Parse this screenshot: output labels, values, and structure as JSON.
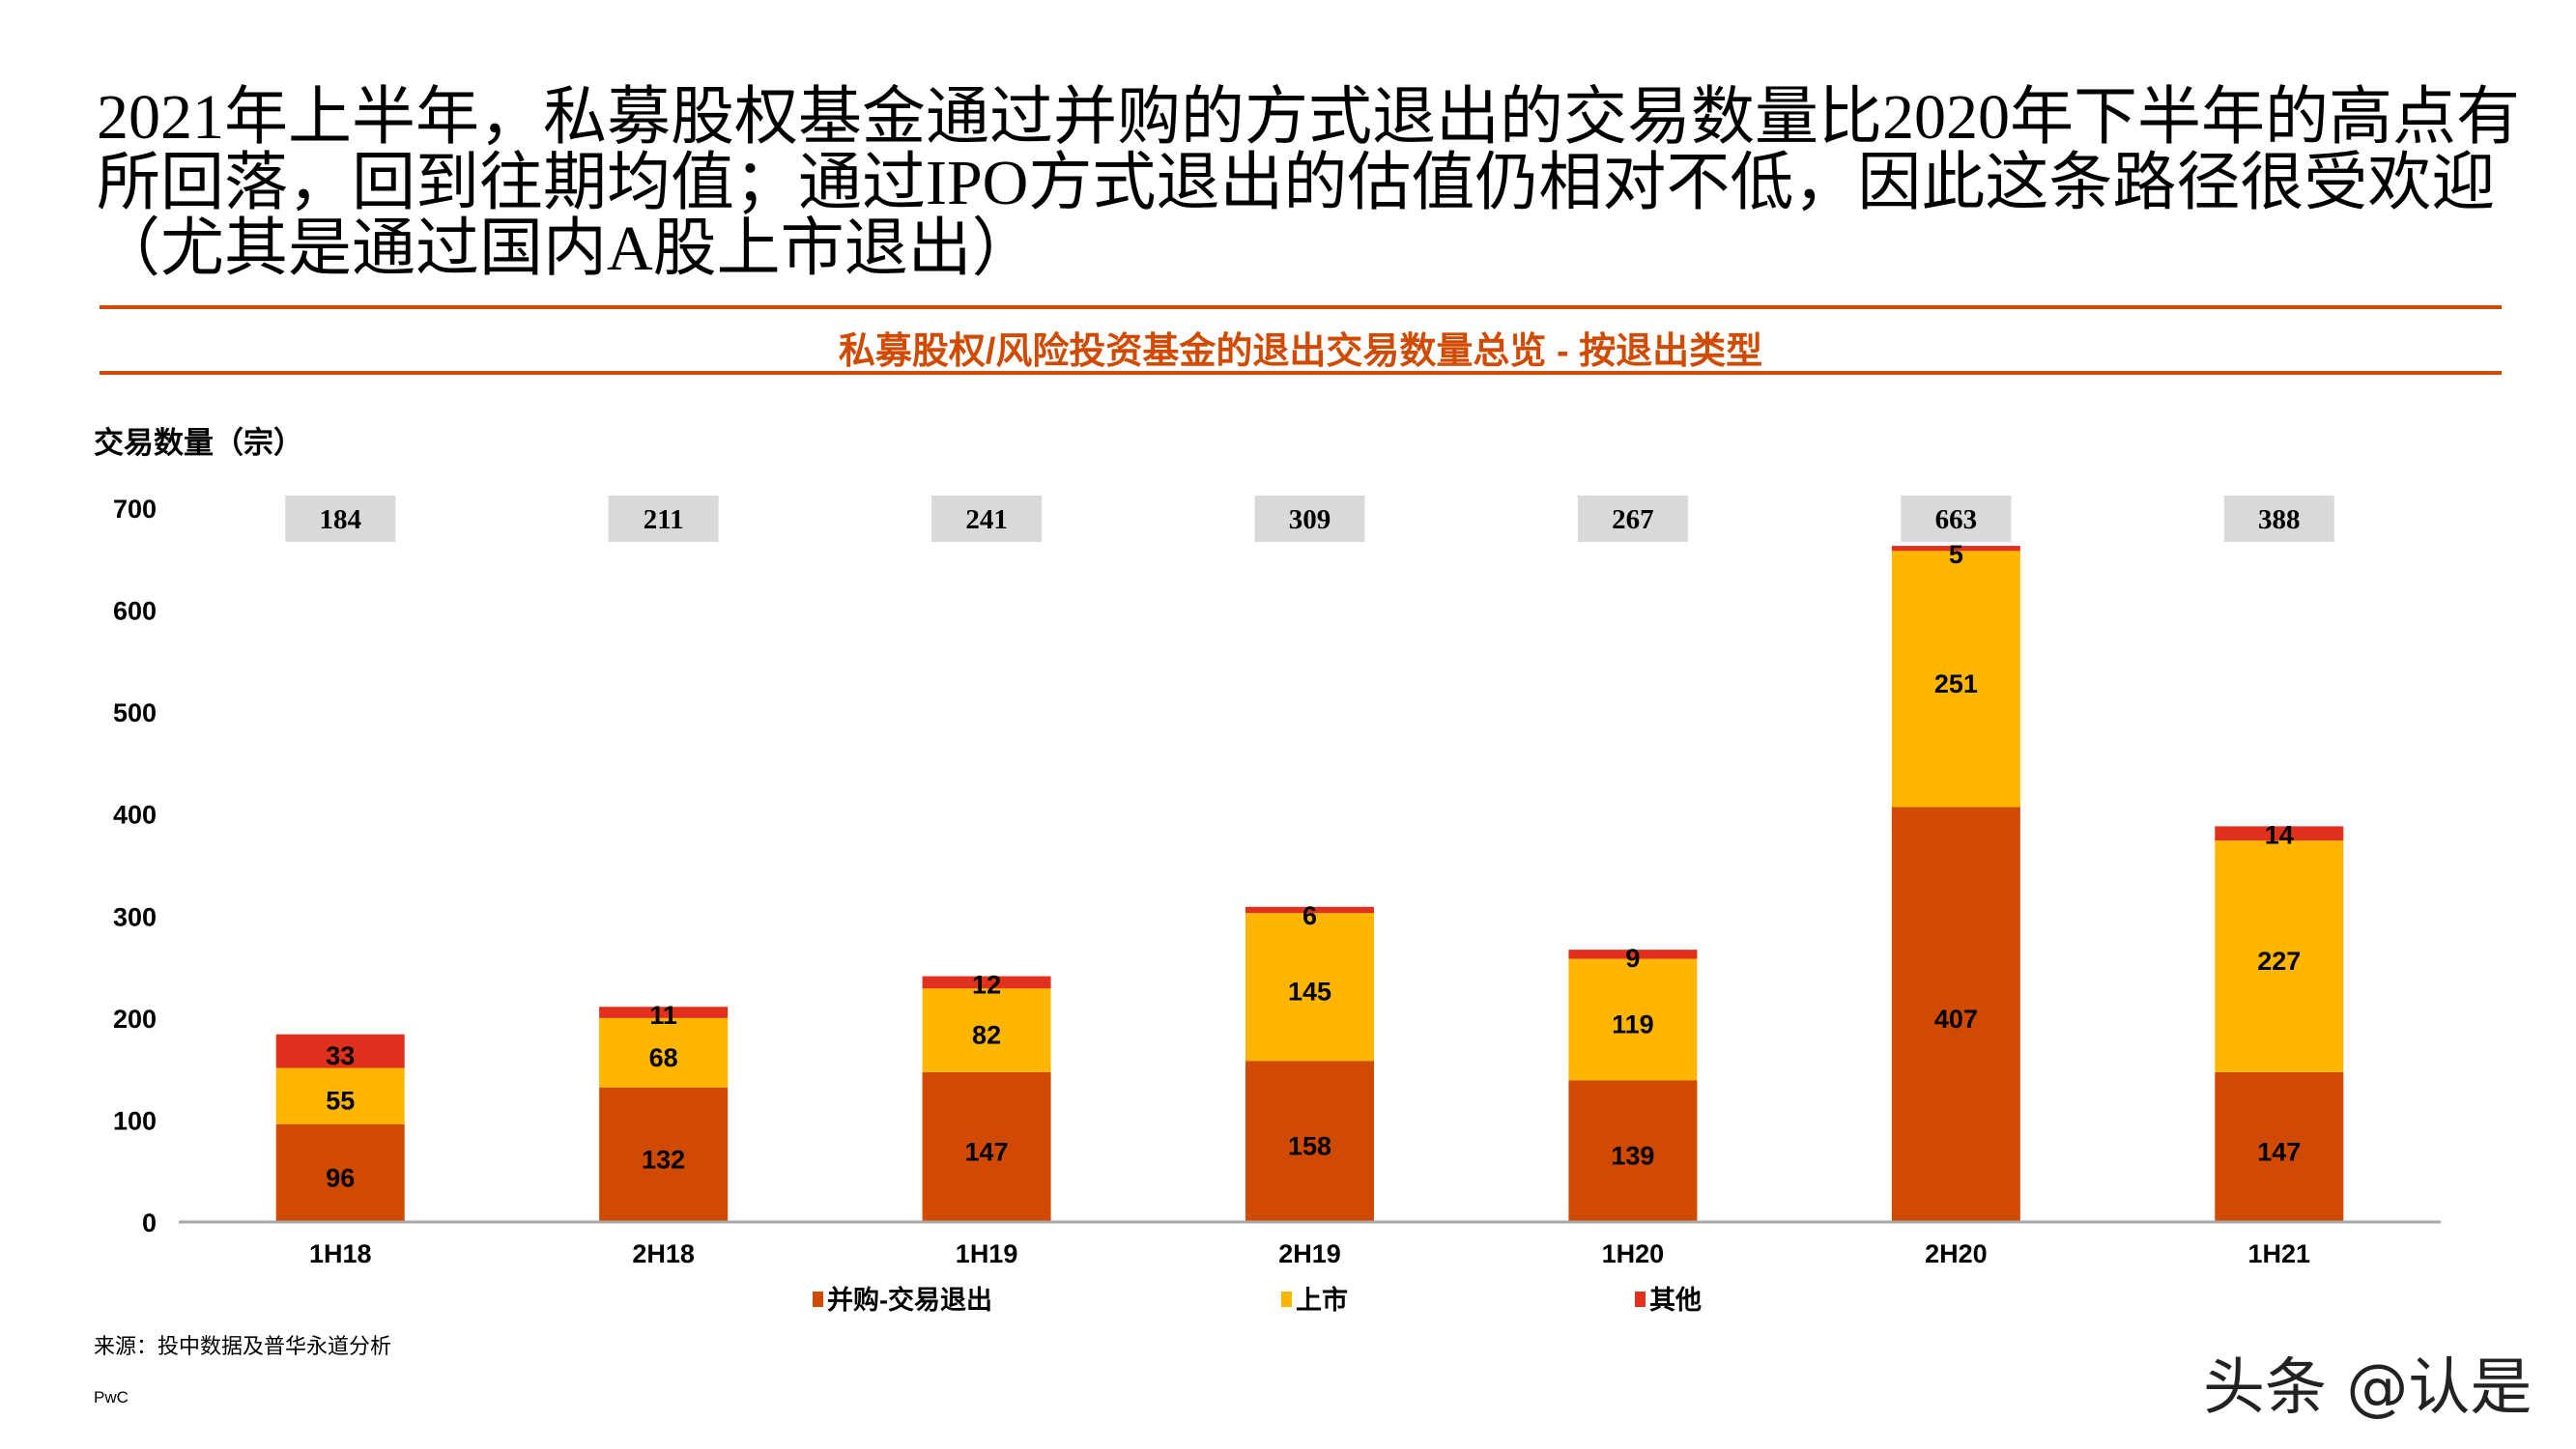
{
  "header": {
    "title": "2021年上半年，私募股权基金通过并购的方式退出的交易数量比2020年下半年的高点有所回落，回到往期均值；通过IPO方式退出的估值仍相对不低，因此这条路径很受欢迎（尤其是通过国内A股上市退出）"
  },
  "footer": {
    "source": "来源：投中数据及普华永道分析",
    "brand": "PwC",
    "watermark": "头条 @认是"
  },
  "colors": {
    "accent": "#D04A02",
    "merger": "#D04A02",
    "ipo": "#FFB600",
    "other": "#E0301E",
    "total_box": "#D9D9D9",
    "axis": "#A6A6A6"
  },
  "chart_data": {
    "type": "bar",
    "stacked": true,
    "title": "私募股权/风险投资基金的退出交易数量总览 - 按退出类型",
    "ylabel": "交易数量（宗）",
    "xlabel": "",
    "ylim": [
      0,
      700
    ],
    "yticks": [
      0,
      100,
      200,
      300,
      400,
      500,
      600,
      700
    ],
    "categories": [
      "1H18",
      "2H18",
      "1H19",
      "2H19",
      "1H20",
      "2H20",
      "1H21"
    ],
    "series": [
      {
        "name": "并购-交易退出",
        "values": [
          96,
          132,
          147,
          158,
          139,
          407,
          147
        ]
      },
      {
        "name": "上市",
        "values": [
          55,
          68,
          82,
          145,
          119,
          251,
          227
        ]
      },
      {
        "name": "其他",
        "values": [
          33,
          11,
          12,
          6,
          9,
          5,
          14
        ]
      }
    ],
    "totals": [
      184,
      211,
      241,
      309,
      267,
      663,
      388
    ],
    "legend": "bottom",
    "grid": false
  }
}
